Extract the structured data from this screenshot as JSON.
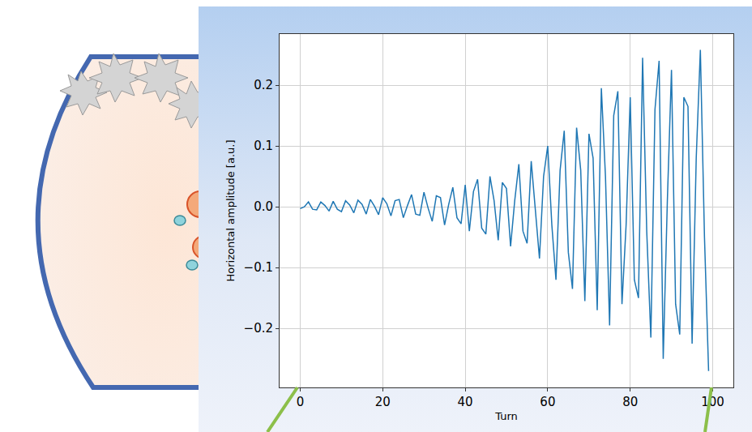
{
  "chart_data": {
    "type": "line",
    "xlabel": "Turn",
    "ylabel": "Horizontal amplitude [a.u.]",
    "color": "#1f77b4",
    "grid": true,
    "xlim": [
      -5,
      105
    ],
    "ylim": [
      -0.297,
      0.284
    ],
    "xticks": [
      0,
      20,
      40,
      60,
      80,
      100
    ],
    "yticks": [
      {
        "value": -0.2,
        "label": "−0.2"
      },
      {
        "value": -0.1,
        "label": "−0.1"
      },
      {
        "value": 0,
        "label": "0.0"
      },
      {
        "value": 0.1,
        "label": "0.1"
      },
      {
        "value": 0.2,
        "label": "0.2"
      }
    ],
    "x": [
      0,
      1,
      2,
      3,
      4,
      5,
      6,
      7,
      8,
      9,
      10,
      11,
      12,
      13,
      14,
      15,
      16,
      17,
      18,
      19,
      20,
      21,
      22,
      23,
      24,
      25,
      26,
      27,
      28,
      29,
      30,
      31,
      32,
      33,
      34,
      35,
      36,
      37,
      38,
      39,
      40,
      41,
      42,
      43,
      44,
      45,
      46,
      47,
      48,
      49,
      50,
      51,
      52,
      53,
      54,
      55,
      56,
      57,
      58,
      59,
      60,
      61,
      62,
      63,
      64,
      65,
      66,
      67,
      68,
      69,
      70,
      71,
      72,
      73,
      74,
      75,
      76,
      77,
      78,
      79,
      80,
      81,
      82,
      83,
      84,
      85,
      86,
      87,
      88,
      89,
      90,
      91,
      92,
      93,
      94,
      95,
      96,
      97,
      98,
      99
    ],
    "values": [
      -0.003,
      0.0,
      0.008,
      -0.004,
      -0.005,
      0.008,
      0.002,
      -0.007,
      0.009,
      -0.004,
      -0.008,
      0.01,
      0.003,
      -0.01,
      0.011,
      0.004,
      -0.012,
      0.012,
      0.001,
      -0.013,
      0.015,
      0.005,
      -0.015,
      0.01,
      0.012,
      -0.018,
      0.002,
      0.02,
      -0.012,
      -0.014,
      0.024,
      -0.002,
      -0.024,
      0.018,
      0.015,
      -0.03,
      0.004,
      0.032,
      -0.018,
      -0.028,
      0.036,
      -0.04,
      0.025,
      0.045,
      -0.035,
      -0.045,
      0.05,
      0.01,
      -0.055,
      0.04,
      0.03,
      -0.065,
      0.01,
      0.07,
      -0.04,
      -0.06,
      0.075,
      -0.005,
      -0.085,
      0.05,
      0.1,
      -0.03,
      -0.12,
      0.06,
      0.125,
      -0.075,
      -0.135,
      0.13,
      0.06,
      -0.155,
      0.12,
      0.08,
      -0.17,
      0.195,
      0.05,
      -0.195,
      0.15,
      0.19,
      -0.16,
      -0.03,
      0.18,
      -0.12,
      -0.15,
      0.245,
      -0.04,
      -0.215,
      0.16,
      0.24,
      -0.25,
      0.01,
      0.225,
      -0.16,
      -0.21,
      0.18,
      0.165,
      -0.225,
      0.08,
      0.258,
      -0.05,
      -0.27
    ]
  }
}
